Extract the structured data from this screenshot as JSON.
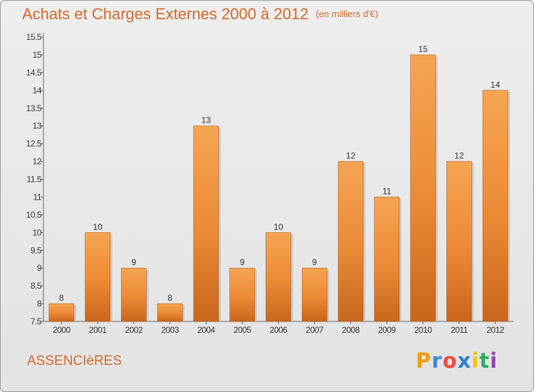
{
  "title": "Achats et Charges Externes 2000 à 2012",
  "unit": "(en milliers d'€)",
  "commune": "ASSENCIèRES",
  "brand": {
    "letters": [
      "P",
      "r",
      "o",
      "x",
      "i",
      "t",
      "i"
    ],
    "colors": [
      "#f39c12",
      "#3b8bd6",
      "#e84c3d",
      "#2c7fd1",
      "#f1c40f",
      "#27ae60",
      "#8e44ad"
    ]
  },
  "colors": {
    "bar": "#f29a45",
    "bar_dark": "#c9661c",
    "title": "#d4692c"
  },
  "chart_data": {
    "type": "bar",
    "categories": [
      "2000",
      "2001",
      "2002",
      "2003",
      "2004",
      "2005",
      "2006",
      "2007",
      "2008",
      "2009",
      "2010",
      "2011",
      "2012"
    ],
    "values": [
      8,
      10,
      9,
      8,
      13,
      9,
      10,
      9,
      12,
      11,
      15,
      12,
      14
    ],
    "ylim": [
      7.5,
      15.5
    ],
    "yticks": [
      "7.5",
      "8",
      "8.5",
      "9",
      "9.5",
      "10",
      "10.5",
      "11",
      "11.5",
      "12",
      "12.5",
      "13",
      "13.5",
      "14",
      "14.5",
      "15",
      "15.5"
    ],
    "grid": false,
    "title": "Achats et Charges Externes 2000 à 2012",
    "xlabel": "",
    "ylabel": ""
  }
}
